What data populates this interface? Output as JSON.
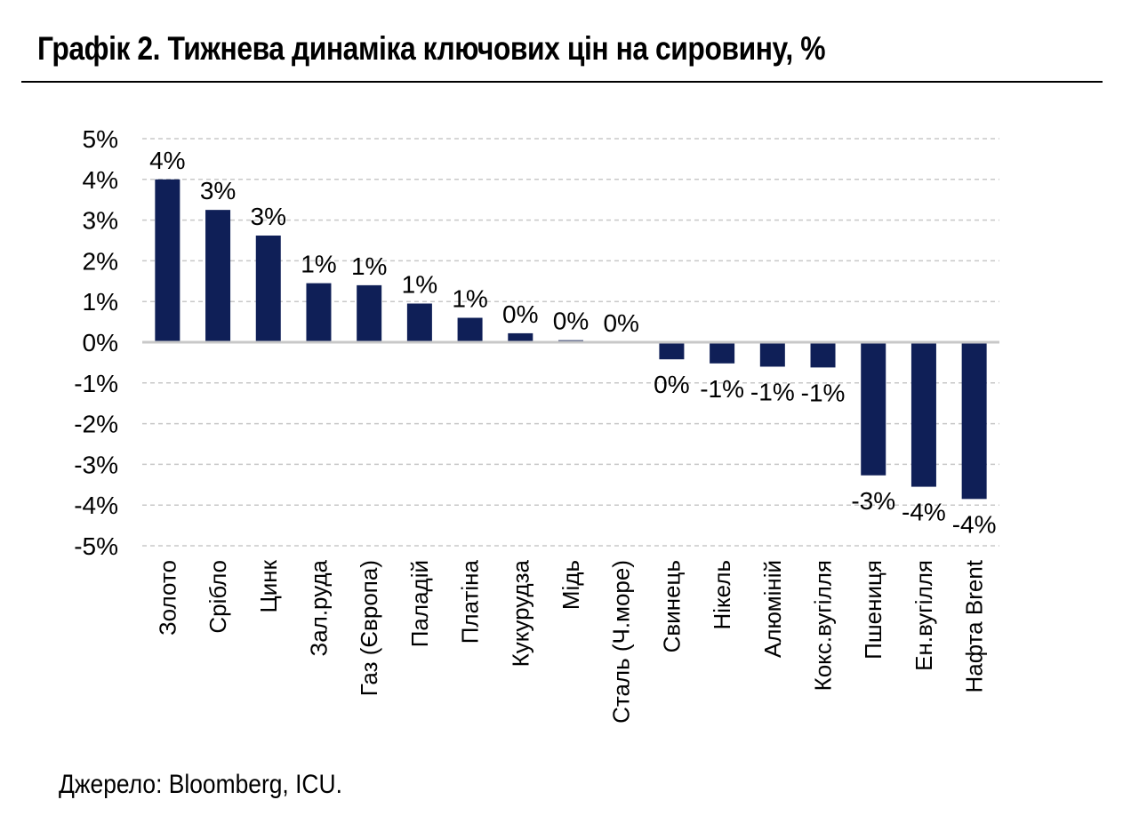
{
  "chart_data": {
    "type": "bar",
    "title": "Графік 2. Тижнева динаміка ключових цін на сировину, %",
    "categories": [
      "Золото",
      "Срібло",
      "Цинк",
      "Зал.руда",
      "Газ (Європа)",
      "Паладій",
      "Платіна",
      "Кукурудза",
      "Мідь",
      "Сталь (Ч.море)",
      "Свинець",
      "Нікель",
      "Алюміній",
      "Кокс.вугілля",
      "Пшениця",
      "Ен.вугілля",
      "Нафта Brent"
    ],
    "values": [
      4.0,
      3.25,
      2.62,
      1.45,
      1.4,
      0.95,
      0.6,
      0.22,
      0.05,
      0.0,
      -0.42,
      -0.52,
      -0.6,
      -0.62,
      -3.27,
      -3.55,
      -3.85
    ],
    "data_labels": [
      "4%",
      "3%",
      "3%",
      "1%",
      "1%",
      "1%",
      "1%",
      "0%",
      "0%",
      "0%",
      "0%",
      "-1%",
      "-1%",
      "-1%",
      "-3%",
      "-4%",
      "-4%"
    ],
    "ylim": [
      -5,
      5
    ],
    "yticks": [
      5,
      4,
      3,
      2,
      1,
      0,
      -1,
      -2,
      -3,
      -4,
      -5
    ],
    "ytick_labels": [
      "5%",
      "4%",
      "3%",
      "2%",
      "1%",
      "0%",
      "-1%",
      "-2%",
      "-3%",
      "-4%",
      "-5%"
    ],
    "xlabel": "",
    "ylabel": "",
    "grid": true,
    "legend": "none",
    "colors": {
      "bar": "#0f1f57",
      "grid": "#c8c8c8",
      "zero_line": "#c8c8c8"
    }
  },
  "source": "Джерело: Bloomberg, ICU."
}
